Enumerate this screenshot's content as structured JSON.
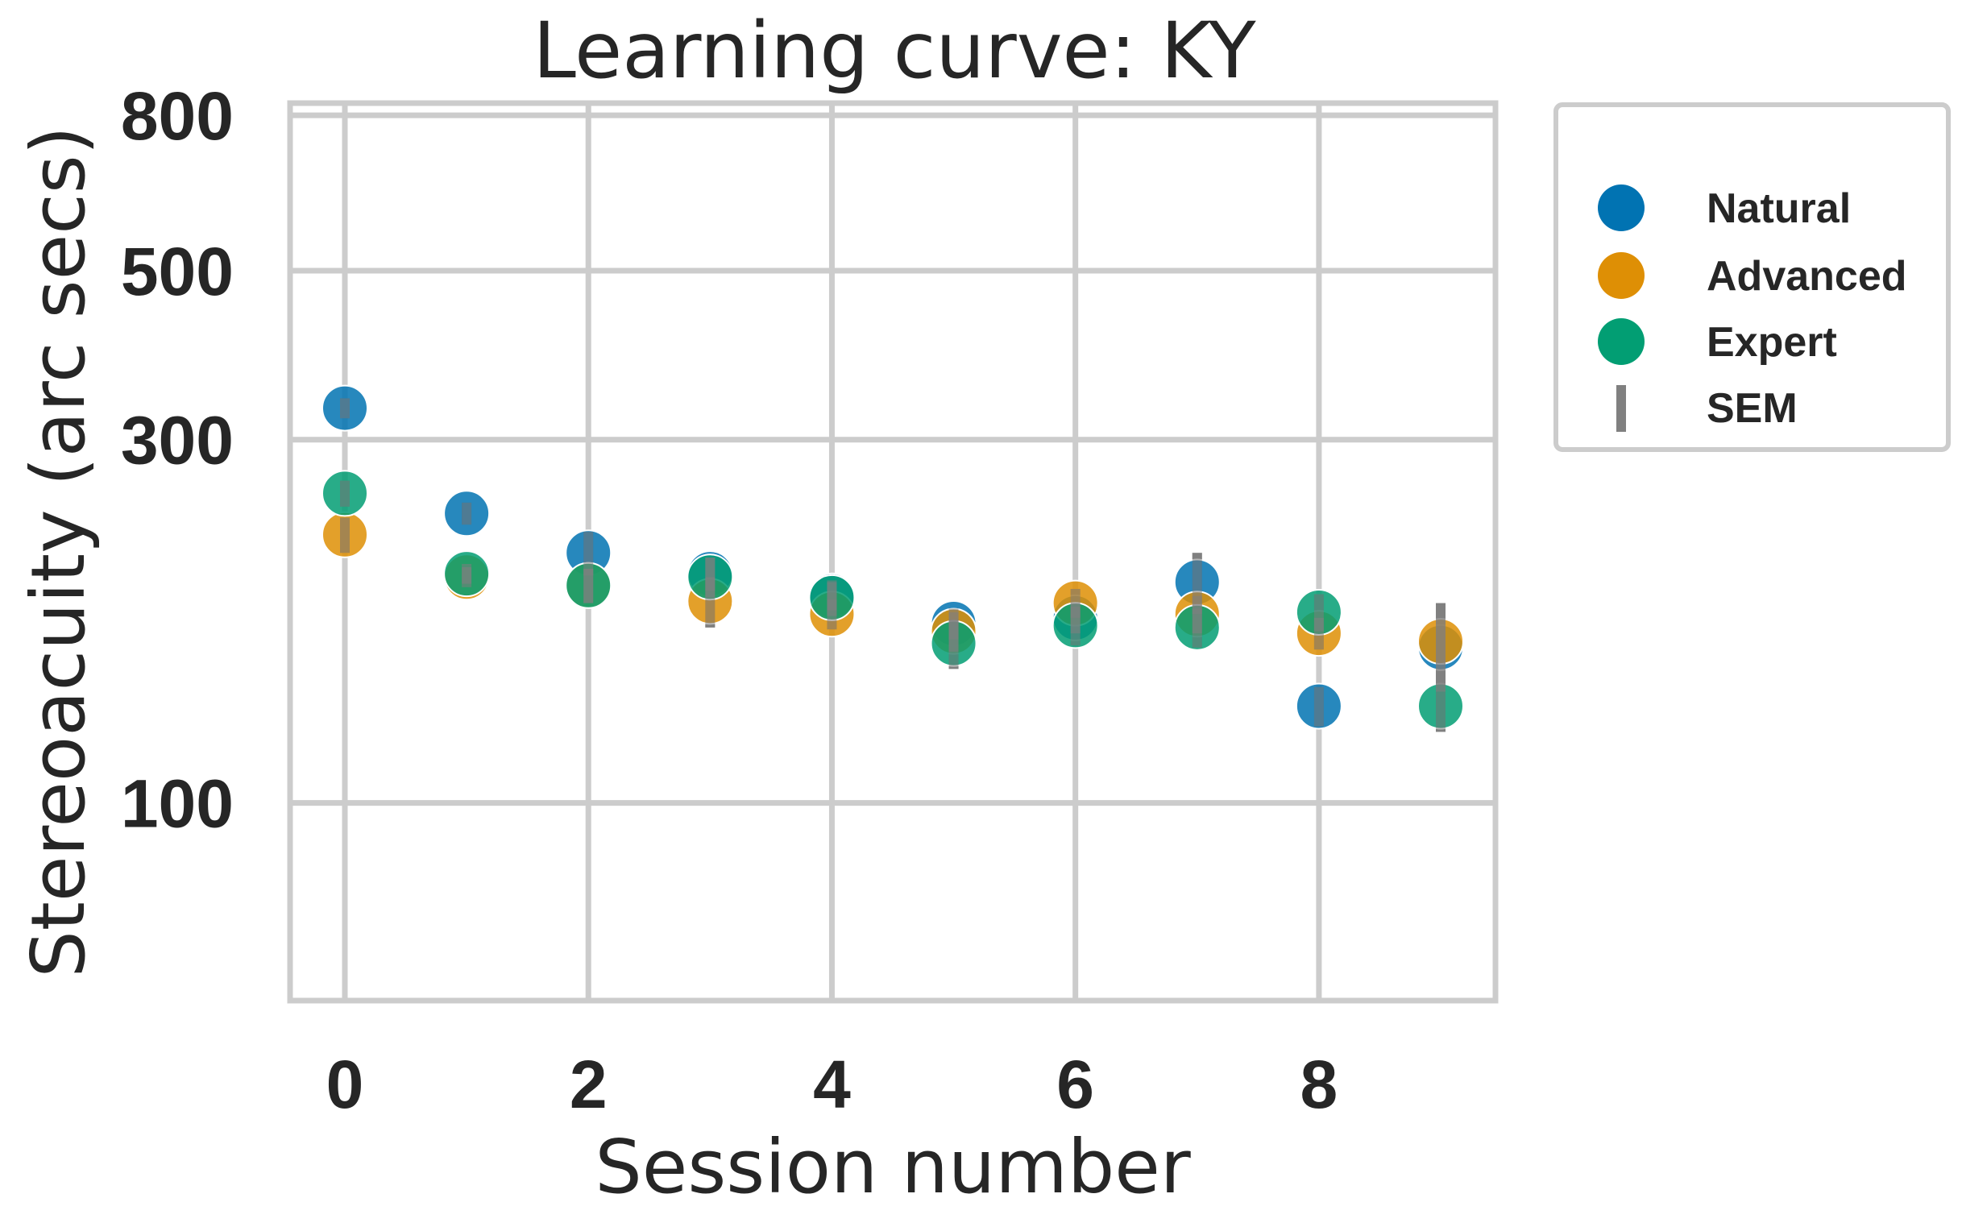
{
  "chart_data": {
    "type": "scatter",
    "title": "Learning curve: KY",
    "xlabel": "Session number",
    "ylabel": "Stereoacuity (arc secs)",
    "xlim": [
      -0.45,
      9.45
    ],
    "ylim": [
      55,
      830
    ],
    "yscale": "log",
    "xticks": [
      0,
      2,
      4,
      6,
      8
    ],
    "yticks": [
      100,
      300,
      500,
      800
    ],
    "grid": true,
    "legend_position": "outside-top-right",
    "errorbar_label": "SEM",
    "errorbar_color": "#808080",
    "series": [
      {
        "name": "Natural",
        "color": "#0173b2",
        "x": [
          0,
          1,
          2,
          3,
          4,
          5,
          6,
          7,
          8,
          9
        ],
        "y": [
          330,
          240,
          213,
          200,
          187,
          172,
          175,
          195,
          134,
          160
        ],
        "sem": [
          10,
          8,
          14,
          10,
          8,
          8,
          8,
          18,
          8,
          20
        ]
      },
      {
        "name": "Advanced",
        "color": "#de8f05",
        "x": [
          0,
          1,
          2,
          3,
          4,
          5,
          6,
          7,
          8,
          9
        ],
        "y": [
          225,
          198,
          193,
          184,
          177,
          168,
          183,
          177,
          167,
          163
        ],
        "sem": [
          12,
          6,
          10,
          14,
          8,
          10,
          8,
          10,
          8,
          20
        ]
      },
      {
        "name": "Expert",
        "color": "#029e73",
        "x": [
          0,
          1,
          2,
          3,
          4,
          5,
          6,
          7,
          8,
          9
        ],
        "y": [
          255,
          200,
          193,
          198,
          186,
          162,
          171,
          170,
          178,
          134
        ],
        "sem": [
          10,
          6,
          10,
          12,
          10,
          12,
          10,
          10,
          10,
          10
        ]
      }
    ]
  }
}
